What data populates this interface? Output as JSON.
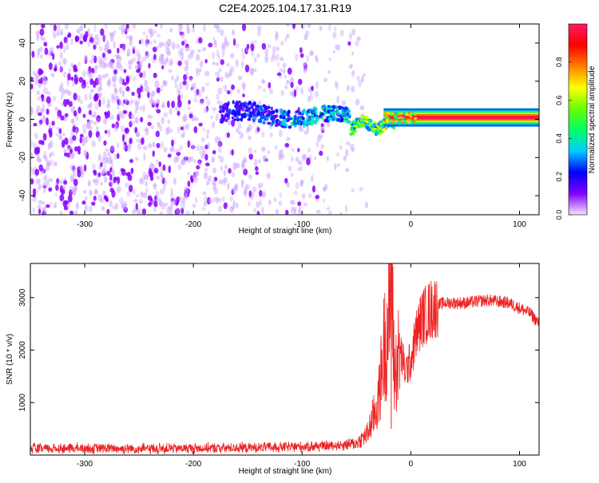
{
  "title": "C2E4.2025.104.17.31.R19",
  "chart_data": [
    {
      "type": "heatmap",
      "xlabel": "Height of straight line (km)",
      "ylabel": "Frequency (Hz)",
      "xlim": [
        -350,
        118
      ],
      "ylim": [
        -50,
        50
      ],
      "xticks": [
        -300,
        -200,
        -100,
        0,
        100
      ],
      "yticks": [
        -40,
        -20,
        0,
        20,
        40
      ],
      "colorbar": {
        "label": "Normalized spectral amplitude",
        "range": [
          0,
          1
        ],
        "ticks": [
          0.0,
          0.2,
          0.4,
          0.6,
          0.8
        ],
        "colors": [
          "#f2e6ff",
          "#8000ff",
          "#0000ff",
          "#00ccff",
          "#00ff66",
          "#66ff00",
          "#ffff00",
          "#ff8000",
          "#ff0000",
          "#ff1a66"
        ]
      },
      "bands": [
        {
          "x_from": -350,
          "x_to": -175,
          "f_center": 0,
          "f_halfwidth": 50,
          "amplitude": 0.1,
          "description_values": "broadband noise"
        },
        {
          "x_from": -175,
          "x_to": -55,
          "f_center": 3,
          "f_halfwidth": 5,
          "amplitude": 0.25
        },
        {
          "x_from": -55,
          "x_to": -25,
          "f_center": -3,
          "f_halfwidth": 3,
          "amplitude": 0.5
        },
        {
          "x_from": -25,
          "x_to": 118,
          "f_center": 1,
          "f_halfwidth": 1.5,
          "amplitude": 0.95
        }
      ]
    },
    {
      "type": "line",
      "xlabel": "Height of straight line (km)",
      "ylabel": "SNR (10 * v/v)",
      "xlim": [
        -350,
        118
      ],
      "ylim": [
        0,
        3650
      ],
      "xticks": [
        -300,
        -200,
        -100,
        0,
        100
      ],
      "yticks": [
        1000,
        2000,
        3000
      ],
      "color": "#ee2222",
      "x": [
        -350,
        -300,
        -250,
        -200,
        -150,
        -100,
        -70,
        -50,
        -40,
        -30,
        -25,
        -20,
        -18,
        -15,
        -10,
        -5,
        0,
        5,
        10,
        20,
        30,
        50,
        70,
        90,
        100,
        110,
        118
      ],
      "y": [
        120,
        130,
        120,
        130,
        140,
        160,
        180,
        220,
        400,
        1000,
        2000,
        2600,
        3650,
        1500,
        2000,
        1600,
        1800,
        2300,
        2600,
        2800,
        2900,
        2900,
        2950,
        2900,
        2800,
        2700,
        2500
      ]
    }
  ]
}
